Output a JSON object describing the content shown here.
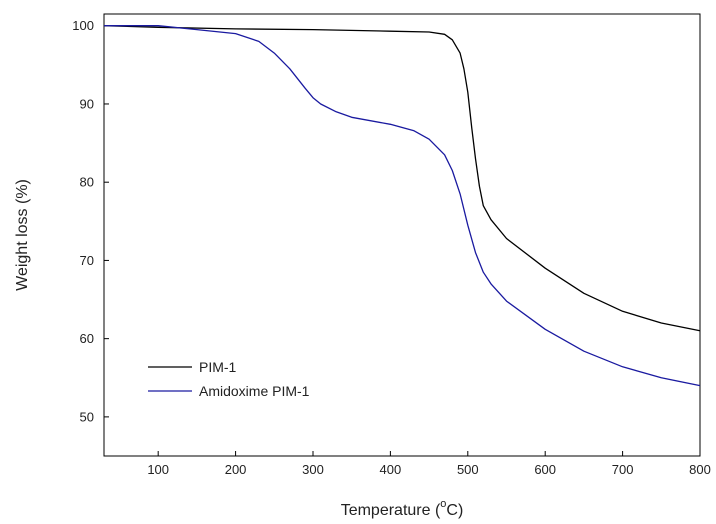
{
  "chart_data": {
    "type": "line",
    "title": "",
    "xlabel": "Temperature (°C)",
    "xlabel_prefix": "Temperature (",
    "xlabel_degree": "o",
    "xlabel_suffix": "C)",
    "ylabel": "Weight loss (%)",
    "xlim": [
      30,
      800
    ],
    "ylim": [
      45,
      101.5
    ],
    "xticks": [
      100,
      200,
      300,
      400,
      500,
      600,
      700,
      800
    ],
    "yticks": [
      50,
      60,
      70,
      80,
      90,
      100
    ],
    "grid": false,
    "legend_position": "bottom-left",
    "series": [
      {
        "name": "PIM-1",
        "color": "#000000",
        "x": [
          30,
          100,
          200,
          300,
          400,
          450,
          470,
          480,
          490,
          495,
          500,
          505,
          510,
          515,
          520,
          530,
          550,
          600,
          650,
          700,
          750,
          800
        ],
        "y": [
          100,
          99.8,
          99.6,
          99.5,
          99.3,
          99.2,
          98.9,
          98.2,
          96.5,
          94.5,
          91.5,
          87.0,
          83.0,
          79.5,
          77.0,
          75.2,
          72.8,
          69.0,
          65.8,
          63.5,
          62.0,
          61.0
        ]
      },
      {
        "name": "Amidoxime PIM-1",
        "color": "#1a1aa0",
        "x": [
          30,
          100,
          150,
          200,
          230,
          250,
          270,
          290,
          300,
          310,
          330,
          350,
          400,
          430,
          450,
          470,
          480,
          490,
          500,
          510,
          520,
          530,
          550,
          600,
          650,
          700,
          750,
          800
        ],
        "y": [
          100,
          100,
          99.5,
          99.0,
          98.0,
          96.5,
          94.5,
          92.0,
          90.8,
          90.0,
          89.0,
          88.3,
          87.4,
          86.6,
          85.5,
          83.5,
          81.5,
          78.5,
          74.5,
          71.0,
          68.5,
          67.0,
          64.8,
          61.2,
          58.4,
          56.4,
          55.0,
          54.0
        ]
      }
    ]
  }
}
